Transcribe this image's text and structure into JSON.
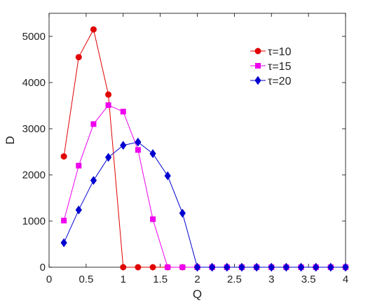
{
  "chart_data": {
    "type": "line",
    "xlabel": "Q",
    "ylabel": "D",
    "xlim": [
      0,
      4
    ],
    "ylim": [
      0,
      5500
    ],
    "xticks": [
      "0",
      "0.5",
      "1",
      "1.5",
      "2",
      "2.5",
      "3",
      "3.5",
      "4"
    ],
    "xtick_values": [
      0,
      0.5,
      1,
      1.5,
      2,
      2.5,
      3,
      3.5,
      4
    ],
    "yticks": [
      "0",
      "1000",
      "2000",
      "3000",
      "4000",
      "5000"
    ],
    "ytick_values": [
      0,
      1000,
      2000,
      3000,
      4000,
      5000
    ],
    "grid": false,
    "legend_position": "top-right",
    "series": [
      {
        "name": "τ=10",
        "color": "#e00000",
        "marker": "circle",
        "x": [
          0.2,
          0.4,
          0.6,
          0.8,
          1.0,
          1.2,
          1.4,
          1.6,
          1.8,
          2.0,
          2.2,
          2.4,
          2.6,
          2.8,
          3.0,
          3.2,
          3.4,
          3.6,
          3.8,
          4.0
        ],
        "y": [
          2400,
          4550,
          5150,
          3740,
          0,
          0,
          0,
          0,
          0,
          0,
          0,
          0,
          0,
          0,
          0,
          0,
          0,
          0,
          0,
          0
        ]
      },
      {
        "name": "τ=15",
        "color": "#ee00ee",
        "marker": "square",
        "x": [
          0.2,
          0.4,
          0.6,
          0.8,
          1.0,
          1.2,
          1.4,
          1.6,
          1.8,
          2.0,
          2.2,
          2.4,
          2.6,
          2.8,
          3.0,
          3.2,
          3.4,
          3.6,
          3.8,
          4.0
        ],
        "y": [
          1010,
          2200,
          3100,
          3510,
          3370,
          2540,
          1040,
          0,
          0,
          0,
          0,
          0,
          0,
          0,
          0,
          0,
          0,
          0,
          0,
          0
        ]
      },
      {
        "name": "τ=20",
        "color": "#0000d0",
        "marker": "diamond",
        "x": [
          0.2,
          0.4,
          0.6,
          0.8,
          1.0,
          1.2,
          1.4,
          1.6,
          1.8,
          2.0,
          2.2,
          2.4,
          2.6,
          2.8,
          3.0,
          3.2,
          3.4,
          3.6,
          3.8,
          4.0
        ],
        "y": [
          530,
          1240,
          1880,
          2380,
          2640,
          2710,
          2460,
          1980,
          1170,
          0,
          0,
          0,
          0,
          0,
          0,
          0,
          0,
          0,
          0,
          0
        ]
      }
    ]
  }
}
